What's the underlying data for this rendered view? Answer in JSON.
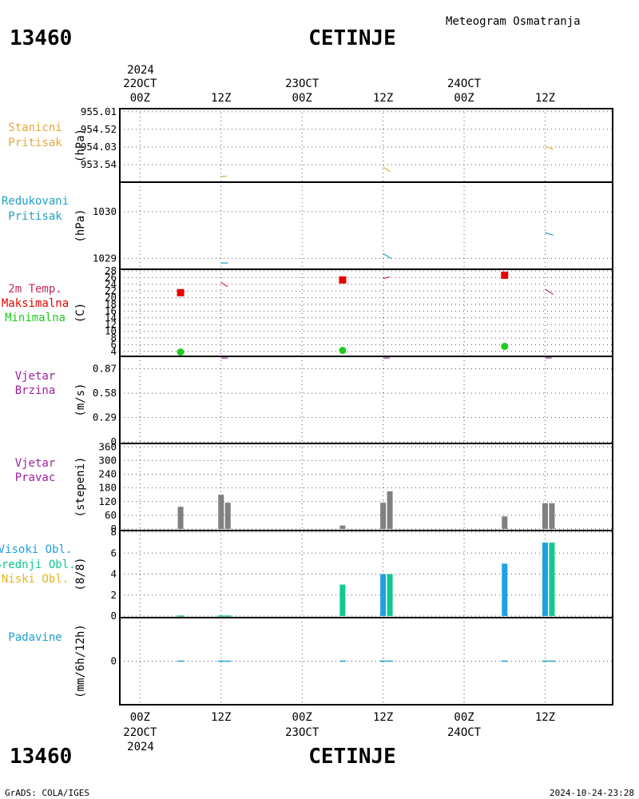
{
  "header": {
    "station_id": "13460",
    "station_name": "CETINJE",
    "subtitle": "Meteogram Osmatranja"
  },
  "footer": {
    "station_id": "13460",
    "station_name": "CETINJE",
    "credit": "GrADS: COLA/IGES",
    "timestamp": "2024-10-24-23:28"
  },
  "time_axis": {
    "year": "2024",
    "ticks": [
      {
        "hour": 0,
        "label": "00Z",
        "date": "22OCT"
      },
      {
        "hour": 12,
        "label": "12Z",
        "date": ""
      },
      {
        "hour": 24,
        "label": "00Z",
        "date": "23OCT"
      },
      {
        "hour": 36,
        "label": "12Z",
        "date": ""
      },
      {
        "hour": 48,
        "label": "00Z",
        "date": "24OCT"
      },
      {
        "hour": 60,
        "label": "12Z",
        "date": ""
      }
    ],
    "range_hours": [
      -3,
      70
    ]
  },
  "colors": {
    "pressure_station": "#e6a53c",
    "pressure_reduced": "#1ea0c8",
    "temp_2m": "#c8285a",
    "temp_max": "#e60000",
    "temp_min": "#1ecc1e",
    "wind": "#a020a0",
    "wind_dir_bar": "#808080",
    "cloud_high": "#1ea0e6",
    "cloud_mid": "#10c890",
    "cloud_low": "#e6b41e",
    "precip": "#1ea0c8"
  },
  "chart_data": [
    {
      "type": "line",
      "panel": "stanicni-pritisak",
      "labels": [
        "Stanicni",
        "Pritisak"
      ],
      "ylabel": "(hPa)",
      "yticks": [
        "955.01",
        "954.52",
        "954.03",
        "953.54"
      ],
      "ylim": [
        953.1,
        955.05
      ],
      "series": [
        {
          "values": [
            [
              12,
              953.22
            ],
            [
              12.8,
              953.22
            ],
            [
              36,
              953.48
            ],
            [
              37,
              953.35
            ],
            [
              60,
              954.05
            ],
            [
              61.2,
              953.97
            ]
          ]
        }
      ]
    },
    {
      "type": "line",
      "panel": "redukovani-pritisak",
      "labels": [
        "Redukovani",
        "Pritisak"
      ],
      "ylabel": "(hPa)",
      "yticks": [
        "1030",
        "1029"
      ],
      "ylim": [
        1028.8,
        1030.6
      ],
      "series": [
        {
          "values": [
            [
              12,
              1028.9
            ],
            [
              13,
              1028.9
            ],
            [
              36,
              1029.1
            ],
            [
              37.2,
              1029.0
            ],
            [
              60,
              1029.55
            ],
            [
              61.2,
              1029.5
            ]
          ]
        }
      ]
    },
    {
      "type": "scatter",
      "panel": "temperatura",
      "labels": [
        "2m Temp.",
        "Maksimalna",
        "Minimalna"
      ],
      "ylabel": "(C)",
      "yticks": [
        "4",
        "6",
        "8",
        "10",
        "12",
        "14",
        "16",
        "18",
        "20",
        "22",
        "24",
        "26",
        "28"
      ],
      "ylim": [
        3,
        28
      ],
      "temp_2m": [
        [
          12,
          24.5
        ],
        [
          13,
          23.3
        ],
        [
          36,
          25.7
        ],
        [
          37,
          26.2
        ],
        [
          60,
          22.5
        ],
        [
          61.2,
          21.0
        ]
      ],
      "maximum": [
        [
          6,
          21.5
        ],
        [
          30,
          25.3
        ],
        [
          54,
          26.7
        ]
      ],
      "minimum": [
        [
          6,
          3.8
        ],
        [
          30,
          4.3
        ],
        [
          54,
          5.5
        ]
      ]
    },
    {
      "type": "line",
      "panel": "vjetar-brzina",
      "labels": [
        "Vjetar",
        "Brzina"
      ],
      "ylabel": "(m/s)",
      "yticks": [
        "0.87",
        "0.58",
        "0.29",
        "0"
      ],
      "ylim": [
        0,
        1.0
      ],
      "series": [
        {
          "values": [
            [
              12,
              1.0
            ],
            [
              13,
              1.0
            ],
            [
              36,
              1.0
            ],
            [
              37,
              1.0
            ],
            [
              60,
              1.0
            ],
            [
              61,
              1.0
            ]
          ]
        }
      ]
    },
    {
      "type": "bar",
      "panel": "vjetar-pravac",
      "labels": [
        "Vjetar",
        "Pravac"
      ],
      "ylabel": "(stepeni)",
      "yticks": [
        "0",
        "60",
        "120",
        "180",
        "240",
        "300",
        "360"
      ],
      "ylim": [
        0,
        368
      ],
      "bars": [
        [
          6,
          97
        ],
        [
          12,
          150
        ],
        [
          13,
          115
        ],
        [
          30,
          15
        ],
        [
          36,
          115
        ],
        [
          37,
          165
        ],
        [
          54,
          55
        ],
        [
          60,
          113
        ],
        [
          61,
          113
        ]
      ]
    },
    {
      "type": "bar",
      "panel": "oblacnost",
      "labels": [
        "Visoki Obl.",
        "Srednji Obl.",
        "Niski Obl."
      ],
      "ylabel": "(8/8)",
      "yticks": [
        "0",
        "2",
        "4",
        "6",
        "8"
      ],
      "ylim": [
        0,
        8
      ],
      "high": [
        [
          36,
          4
        ],
        [
          54,
          5
        ],
        [
          60,
          7
        ]
      ],
      "mid": [
        [
          30,
          3
        ],
        [
          37,
          4
        ],
        [
          61,
          7
        ]
      ],
      "low": [
        [
          6,
          0.05
        ],
        [
          12,
          0.05
        ],
        [
          13,
          0.05
        ]
      ]
    },
    {
      "type": "bar",
      "panel": "padavine",
      "labels": [
        "Padavine"
      ],
      "ylabel": "(mm/6h/12h)",
      "yticks": [
        "0"
      ],
      "ylim": [
        -1,
        1
      ],
      "values": [
        [
          6,
          0
        ],
        [
          12,
          0
        ],
        [
          13,
          0
        ],
        [
          30,
          0
        ],
        [
          36,
          0
        ],
        [
          37,
          0
        ],
        [
          54,
          0
        ],
        [
          60,
          0
        ],
        [
          61,
          0
        ]
      ]
    }
  ]
}
